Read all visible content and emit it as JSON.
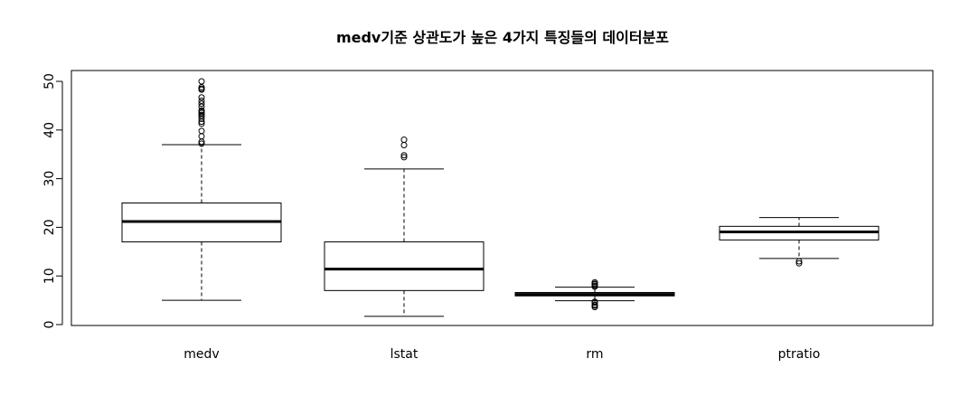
{
  "chart_data": {
    "type": "boxplot",
    "title": "medv기준 상관도가 높은 4가지 특징들의 데이터분포",
    "xlabel": "",
    "ylabel": "",
    "ylim": [
      0,
      50
    ],
    "yticks": [
      0,
      10,
      20,
      30,
      40,
      50
    ],
    "grid": false,
    "categories": [
      "medv",
      "lstat",
      "rm",
      "ptratio"
    ],
    "boxes": [
      {
        "name": "medv",
        "whisker_low": 5.0,
        "q1": 17.0,
        "median": 21.2,
        "q3": 25.0,
        "whisker_high": 37.0,
        "outliers": [
          37.2,
          37.6,
          38.7,
          39.8,
          41.3,
          41.7,
          42.3,
          42.8,
          43.1,
          43.5,
          43.8,
          44.0,
          44.8,
          45.4,
          46.0,
          46.7,
          48.3,
          48.5,
          48.8,
          50.0
        ]
      },
      {
        "name": "lstat",
        "whisker_low": 1.7,
        "q1": 7.0,
        "median": 11.4,
        "q3": 17.0,
        "whisker_high": 32.0,
        "outliers": [
          34.4,
          34.8,
          36.9,
          38.0
        ]
      },
      {
        "name": "rm",
        "whisker_low": 4.9,
        "q1": 5.9,
        "median": 6.2,
        "q3": 6.6,
        "whisker_high": 7.7,
        "outliers": [
          3.6,
          3.9,
          4.1,
          4.5,
          4.7,
          7.8,
          8.0,
          8.3,
          8.4,
          8.7
        ]
      },
      {
        "name": "ptratio",
        "whisker_low": 13.6,
        "q1": 17.4,
        "median": 19.05,
        "q3": 20.2,
        "whisker_high": 22.0,
        "outliers": [
          12.6,
          13.0
        ]
      }
    ]
  }
}
